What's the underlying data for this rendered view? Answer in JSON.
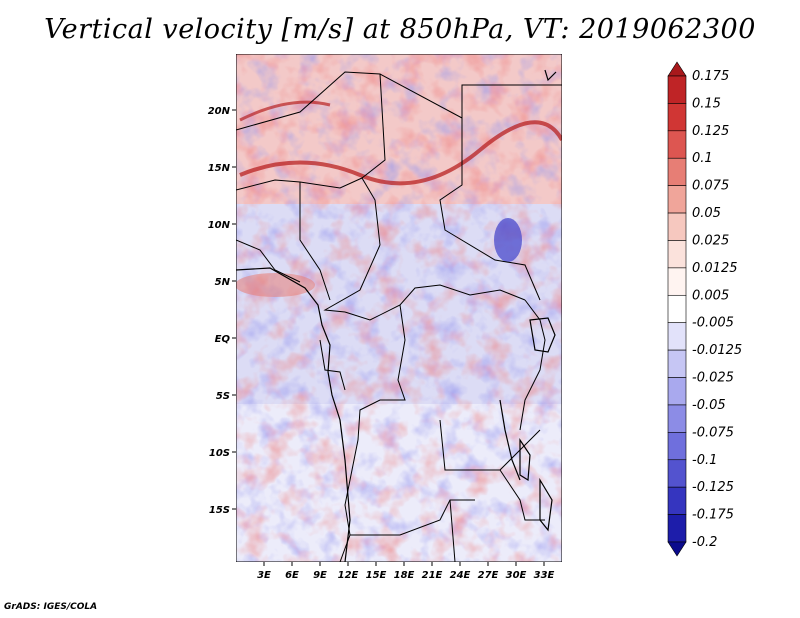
{
  "title": "Vertical velocity [m/s] at 850hPa, VT: 2019062300",
  "footer": "GrADS: IGES/COLA",
  "map": {
    "lon_range": [
      0,
      35
    ],
    "lat_range": [
      -20,
      25
    ],
    "lat_ticks": [
      "20N",
      "15N",
      "10N",
      "5N",
      "EQ",
      "5S",
      "10S",
      "15S"
    ],
    "lon_ticks": [
      "3E",
      "6E",
      "9E",
      "12E",
      "15E",
      "18E",
      "21E",
      "24E",
      "27E",
      "30E",
      "33E"
    ],
    "field": "vertical velocity",
    "units": "m/s",
    "level": "850hPa"
  },
  "colorbar": {
    "labels": [
      "0.175",
      "0.15",
      "0.125",
      "0.1",
      "0.075",
      "0.05",
      "0.025",
      "0.0125",
      "0.005",
      "-0.005",
      "-0.0125",
      "-0.025",
      "-0.05",
      "-0.075",
      "-0.1",
      "-0.125",
      "-0.175",
      "-0.2"
    ],
    "colors": [
      "#a8191c",
      "#bf2426",
      "#d03634",
      "#dd5651",
      "#e77e75",
      "#f0a59a",
      "#f6c8bf",
      "#fbe2dc",
      "#fff4f1",
      "#ffffff",
      "#e2e2fa",
      "#c6c6f4",
      "#a9a9ee",
      "#8c8ce6",
      "#6f6fdd",
      "#5353cf",
      "#3535bf",
      "#1d1daa",
      "#0b0b8c"
    ]
  }
}
